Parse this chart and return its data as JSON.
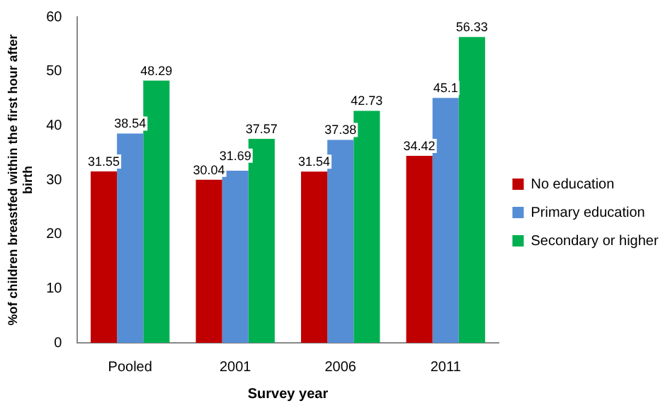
{
  "chart_data": {
    "type": "bar",
    "xlabel": "Survey year",
    "ylabel": "%of children breastfed within the first hour after birth",
    "categories": [
      "Pooled",
      "2001",
      "2006",
      "2011"
    ],
    "series": [
      {
        "name": "No education",
        "color": "#c00000",
        "values": [
          31.55,
          30.04,
          31.54,
          34.42
        ]
      },
      {
        "name": "Primary education",
        "color": "#558ed5",
        "values": [
          38.54,
          31.69,
          37.38,
          45.1
        ]
      },
      {
        "name": "Secondary or higher",
        "color": "#00b050",
        "values": [
          48.29,
          37.57,
          42.73,
          56.33
        ]
      }
    ],
    "ylim": [
      0,
      60
    ],
    "yticks": [
      0,
      10,
      20,
      30,
      40,
      50,
      60
    ],
    "grid": false,
    "legend": "right",
    "data_labels": true
  }
}
